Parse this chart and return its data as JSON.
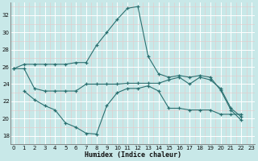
{
  "xlabel": "Humidex (Indice chaleur)",
  "background_color": "#c8e8e8",
  "line_color": "#2a7070",
  "grid_major_color": "#ffffff",
  "grid_minor_color": "#e8c8c8",
  "x_ticks": [
    0,
    1,
    2,
    3,
    4,
    5,
    6,
    7,
    8,
    9,
    10,
    11,
    12,
    13,
    14,
    15,
    16,
    17,
    18,
    19,
    20,
    21,
    22,
    23
  ],
  "y_ticks": [
    18,
    20,
    22,
    24,
    26,
    28,
    30,
    32
  ],
  "ylim": [
    17.0,
    33.5
  ],
  "xlim": [
    -0.3,
    23.3
  ],
  "curve_top": [
    25.8,
    26.3,
    26.3,
    26.3,
    26.3,
    26.3,
    26.5,
    26.5,
    28.5,
    30.0,
    31.5,
    32.8,
    33.0,
    27.2,
    25.2,
    24.8,
    25.0,
    24.8,
    25.0,
    24.8,
    23.3,
    21.0,
    19.8,
    null
  ],
  "curve_mid": [
    25.8,
    25.8,
    23.5,
    23.2,
    23.2,
    23.2,
    23.2,
    24.0,
    24.0,
    24.0,
    24.0,
    24.1,
    24.1,
    24.1,
    24.1,
    24.5,
    24.8,
    24.0,
    24.8,
    24.5,
    23.5,
    21.2,
    20.2,
    null
  ],
  "curve_bot": [
    23.2,
    22.2,
    21.5,
    21.0,
    19.5,
    19.0,
    18.3,
    18.2,
    21.5,
    23.0,
    23.5,
    23.5,
    23.8,
    23.2,
    21.2,
    21.2,
    21.0,
    21.0,
    21.0,
    20.5,
    20.5,
    20.5,
    19.8,
    null
  ]
}
